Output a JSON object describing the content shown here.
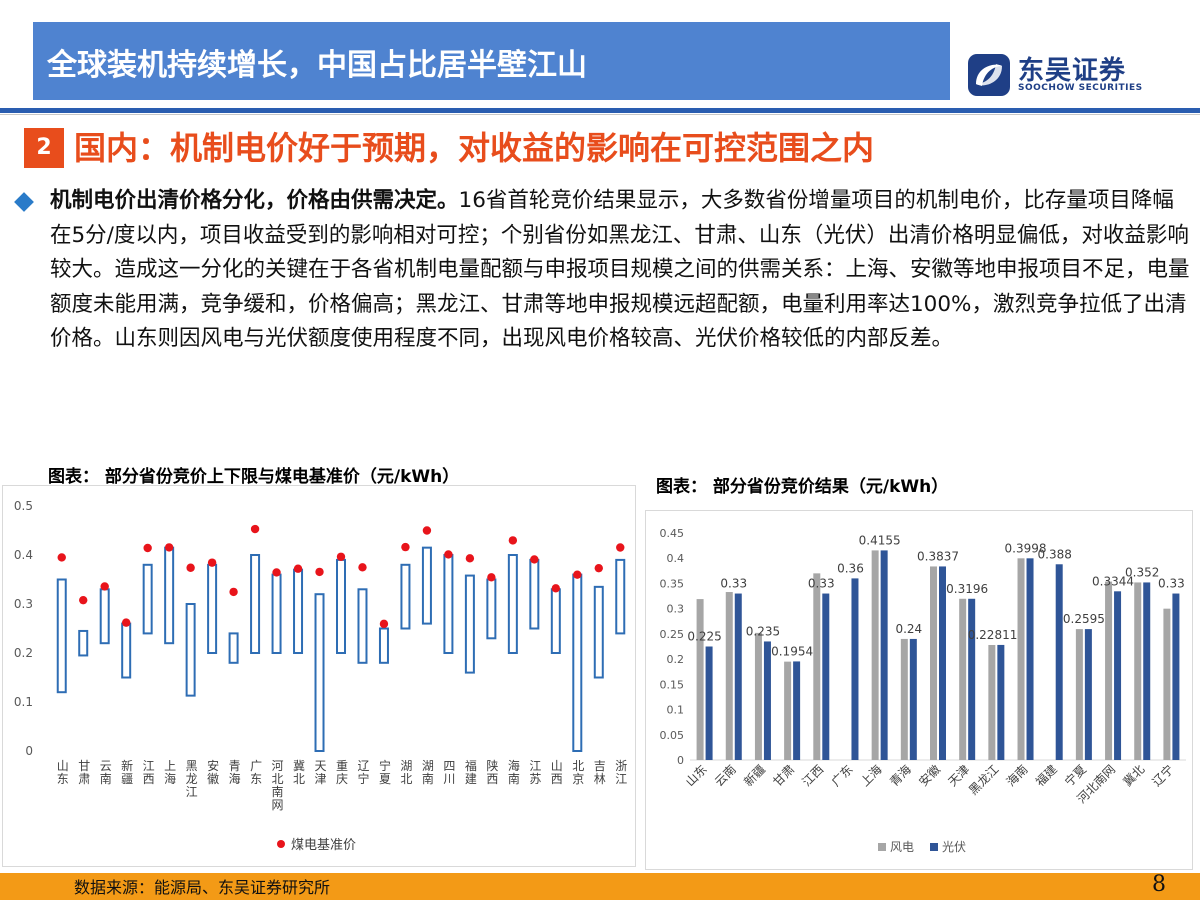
{
  "header": {
    "title": "全球装机持续增长，中国占比居半壁江山",
    "logo_cn": "东吴证券",
    "logo_en": "SOOCHOW SECURITIES"
  },
  "section": {
    "number": "2",
    "title": "国内：机制电价好于预期，对收益的影响在可控范围之内"
  },
  "body": {
    "lead": "机制电价出清价格分化，价格由供需决定。",
    "text": "16省首轮竞价结果显示，大多数省份增量项目的机制电价，比存量项目降幅在5分/度以内，项目收益受到的影响相对可控；个别省份如黑龙江、甘肃、山东（光伏）出清价格明显偏低，对收益影响较大。造成这一分化的关键在于各省机制电量配额与申报项目规模之间的供需关系：上海、安徽等地申报项目不足，电量额度未能用满，竞争缓和，价格偏高；黑龙江、甘肃等地申报规模远超配额，电量利用率达100%，激烈竞争拉低了出清价格。山东则因风电与光伏额度使用程度不同，出现风电价格较高、光伏价格较低的内部反差。"
  },
  "footer": {
    "source": "数据来源：能源局、东吴证券研究所",
    "page": "8"
  },
  "colors": {
    "title_bar": "#4f83d0",
    "accent": "#e84d1c",
    "footer": "#f39a16",
    "floating_bar": "#2e6db4",
    "benchmark_dot": "#e8141b",
    "wind": "#a6a6a6",
    "solar": "#2f5597"
  },
  "chart_data": [
    {
      "type": "bar",
      "subtype": "floating-range-with-dots",
      "caption": "图表：  部分省份竞价上下限与煤电基准价（元/kWh）",
      "categories": [
        "山东",
        "甘肃",
        "云南",
        "新疆",
        "江西",
        "上海",
        "黑龙江",
        "安徽",
        "青海",
        "广东",
        "河北南网",
        "冀北",
        "天津",
        "重庆",
        "辽宁",
        "宁夏",
        "湖北",
        "湖南",
        "四川",
        "福建",
        "陕西",
        "海南",
        "江苏",
        "山西",
        "北京",
        "吉林",
        "浙江"
      ],
      "low": [
        0.12,
        0.195,
        0.22,
        0.15,
        0.24,
        0.22,
        0.113,
        0.2,
        0.18,
        0.2,
        0.2,
        0.2,
        0.0,
        0.2,
        0.18,
        0.18,
        0.25,
        0.26,
        0.2,
        0.16,
        0.23,
        0.2,
        0.25,
        0.2,
        0.0,
        0.15,
        0.24
      ],
      "high": [
        0.35,
        0.245,
        0.33,
        0.26,
        0.38,
        0.415,
        0.3,
        0.38,
        0.24,
        0.4,
        0.36,
        0.37,
        0.32,
        0.39,
        0.33,
        0.25,
        0.38,
        0.415,
        0.4,
        0.358,
        0.35,
        0.4,
        0.39,
        0.33,
        0.36,
        0.335,
        0.39
      ],
      "benchmark": [
        0.395,
        0.3078,
        0.3358,
        0.262,
        0.4143,
        0.4155,
        0.374,
        0.3844,
        0.3247,
        0.453,
        0.3644,
        0.372,
        0.3655,
        0.3964,
        0.3749,
        0.2595,
        0.4161,
        0.45,
        0.4012,
        0.3932,
        0.3545,
        0.4298,
        0.391,
        0.332,
        0.3598,
        0.3731,
        0.4153
      ],
      "legend": [
        "煤电基准价"
      ],
      "ylim": [
        0,
        0.5
      ],
      "yticks": [
        "0",
        "0.1",
        "0.2",
        "0.3",
        "0.4",
        "0.5"
      ]
    },
    {
      "type": "bar",
      "caption": "图表：  部分省份竞价结果（元/kWh）",
      "categories": [
        "山东",
        "云南",
        "新疆",
        "甘肃",
        "江西",
        "广东",
        "上海",
        "青海",
        "安徽",
        "天津",
        "黑龙江",
        "海南",
        "福建",
        "宁夏",
        "河北南网",
        "冀北",
        "辽宁"
      ],
      "series": [
        {
          "name": "风电",
          "values": [
            0.319,
            0.333,
            0.252,
            0.195,
            0.37,
            null,
            0.4155,
            0.24,
            0.3837,
            0.3196,
            0.228,
            0.3998,
            null,
            0.2595,
            0.3537,
            0.352,
            0.3
          ]
        },
        {
          "name": "光伏",
          "values": [
            0.225,
            0.33,
            0.235,
            0.1954,
            0.33,
            0.36,
            0.4155,
            0.24,
            0.3837,
            0.3196,
            0.228111,
            0.3998,
            0.388,
            0.2595,
            0.3344,
            0.352,
            0.33
          ]
        }
      ],
      "data_labels": [
        "0.225",
        "0.33",
        "0.235",
        "0.1954",
        "0.33",
        "0.36",
        "0.4155",
        "0.24",
        "0.3837",
        "0.3196",
        "0.228111",
        "0.3998",
        "0.388",
        "0.2595",
        "0.3344",
        "0.352",
        "0.33"
      ],
      "ylim": [
        0,
        0.45
      ],
      "yticks": [
        "0",
        "0.05",
        "0.1",
        "0.15",
        "0.2",
        "0.25",
        "0.3",
        "0.35",
        "0.4",
        "0.45"
      ]
    }
  ]
}
